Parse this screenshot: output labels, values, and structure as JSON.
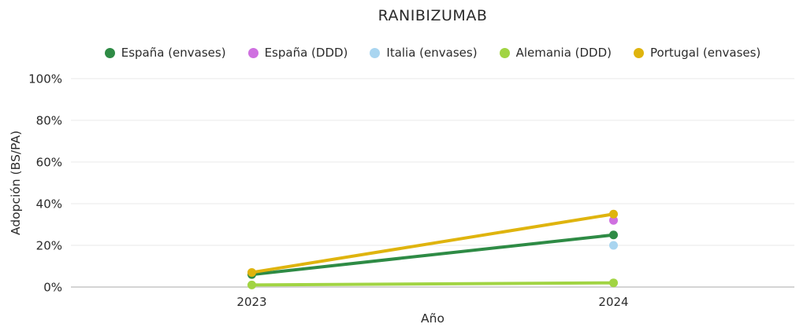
{
  "title": "RANIBIZUMAB",
  "theme": {
    "background": "#ffffff",
    "grid_color": "#e8e8e8",
    "zero_line_color": "#c6c6c6",
    "text_color": "#2b2b2b"
  },
  "chart_data": {
    "type": "line",
    "title": "RANIBIZUMAB",
    "xlabel": "Año",
    "ylabel": "Adopción (BS/PA)",
    "categories": [
      "2023",
      "2024"
    ],
    "series": [
      {
        "name": "España (envases)",
        "color": "#2e8b45",
        "values": [
          6,
          25
        ]
      },
      {
        "name": "España (DDD)",
        "color": "#cf70e0",
        "values": [
          null,
          32
        ]
      },
      {
        "name": "Italia (envases)",
        "color": "#a9d5f0",
        "values": [
          null,
          20
        ]
      },
      {
        "name": "Alemania (DDD)",
        "color": "#a1d443",
        "values": [
          1,
          2
        ]
      },
      {
        "name": "Portugal (envases)",
        "color": "#dfb40e",
        "values": [
          7,
          35
        ]
      }
    ],
    "ylim": [
      0,
      100
    ],
    "yticks": [
      {
        "value": 0,
        "label": "0%"
      },
      {
        "value": 20,
        "label": "20%"
      },
      {
        "value": 40,
        "label": "40%"
      },
      {
        "value": 60,
        "label": "60%"
      },
      {
        "value": 80,
        "label": "80%"
      },
      {
        "value": 100,
        "label": "100%"
      }
    ],
    "grid": true,
    "legend_position": "top"
  }
}
